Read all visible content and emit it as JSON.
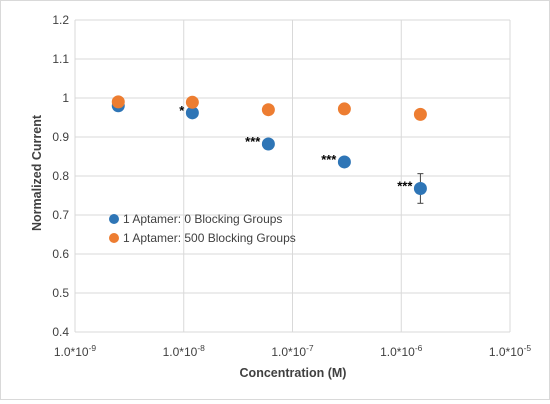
{
  "chart_data": {
    "type": "scatter",
    "xlabel": "Concentration (M)",
    "ylabel": "Normalized Current",
    "x_scale": "log",
    "xlim": [
      1e-09,
      1e-05
    ],
    "ylim": [
      0.4,
      1.2
    ],
    "x_ticks": [
      {
        "value": 1e-09,
        "label": "1.0*10-9",
        "base": "1.0*10",
        "exp": "-9"
      },
      {
        "value": 1e-08,
        "label": "1.0*10-8",
        "base": "1.0*10",
        "exp": "-8"
      },
      {
        "value": 1e-07,
        "label": "1.0*10-7",
        "base": "1.0*10",
        "exp": "-7"
      },
      {
        "value": 1e-06,
        "label": "1.0*10-6",
        "base": "1.0*10",
        "exp": "-6"
      },
      {
        "value": 1e-05,
        "label": "1.0*10-5",
        "base": "1.0*10",
        "exp": "-5"
      }
    ],
    "y_ticks": [
      "0.4",
      "0.5",
      "0.6",
      "0.7",
      "0.8",
      "0.9",
      "1",
      "1.1",
      "1.2"
    ],
    "grid": true,
    "legend_position": "lower-left",
    "series": [
      {
        "name": "1 Aptamer: 0 Blocking Groups",
        "color": "#2e75b6",
        "points": [
          {
            "x": 2.5e-09,
            "y": 0.98
          },
          {
            "x": 1.2e-08,
            "y": 0.962,
            "annotation": "*"
          },
          {
            "x": 6e-08,
            "y": 0.882,
            "annotation": "***"
          },
          {
            "x": 3e-07,
            "y": 0.836,
            "annotation": "***"
          },
          {
            "x": 1.5e-06,
            "y": 0.768,
            "annotation": "***",
            "error": 0.038
          }
        ]
      },
      {
        "name": "1 Aptamer: 500 Blocking Groups",
        "color": "#ed7d31",
        "points": [
          {
            "x": 2.5e-09,
            "y": 0.99
          },
          {
            "x": 1.2e-08,
            "y": 0.989
          },
          {
            "x": 6e-08,
            "y": 0.97
          },
          {
            "x": 3e-07,
            "y": 0.972
          },
          {
            "x": 1.5e-06,
            "y": 0.958
          }
        ]
      }
    ]
  }
}
